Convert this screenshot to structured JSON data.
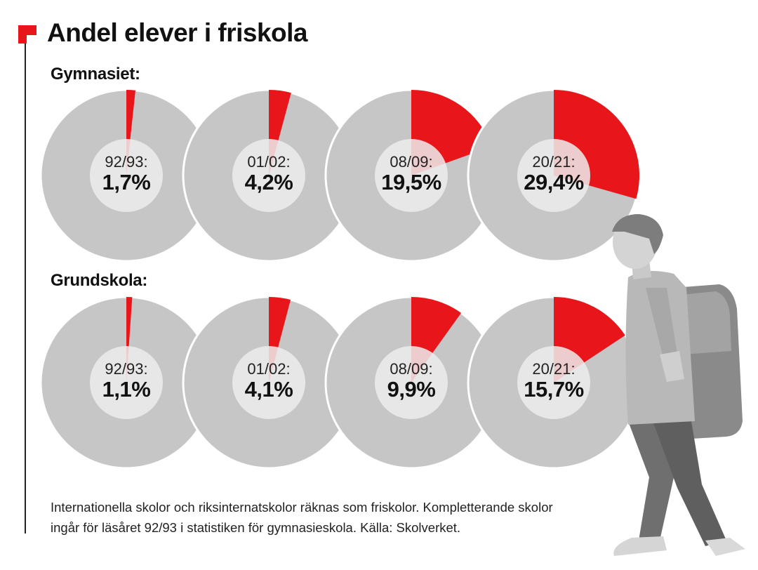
{
  "title": "Andel elever i friskola",
  "colors": {
    "accent": "#e8161b",
    "pie_rest": "#c6c6c6",
    "pie_border": "#ffffff",
    "center": "#ececec"
  },
  "chart_data": [
    {
      "type": "pie",
      "title": "Gymnasiet:",
      "series_name": "Andel elever i friskola",
      "items": [
        {
          "year": "92/93:",
          "value": 1.7,
          "label": "1,7%"
        },
        {
          "year": "01/02:",
          "value": 4.2,
          "label": "4,2%"
        },
        {
          "year": "08/09:",
          "value": 19.5,
          "label": "19,5%"
        },
        {
          "year": "20/21:",
          "value": 29.4,
          "label": "29,4%"
        }
      ]
    },
    {
      "type": "pie",
      "title": "Grundskola:",
      "series_name": "Andel elever i friskola",
      "items": [
        {
          "year": "92/93:",
          "value": 1.1,
          "label": "1,1%"
        },
        {
          "year": "01/02:",
          "value": 4.1,
          "label": "4,1%"
        },
        {
          "year": "08/09:",
          "value": 9.9,
          "label": "9,9%"
        },
        {
          "year": "20/21:",
          "value": 15.7,
          "label": "15,7%"
        }
      ]
    }
  ],
  "footnote": "Internationella skolor och riksinternatskolor räknas som friskolor. Kompletterande skolor ingår för läsåret 92/93 i statistiken för gymnasieskola. Källa: Skolverket.",
  "illustration": "student-with-backpack-walking"
}
